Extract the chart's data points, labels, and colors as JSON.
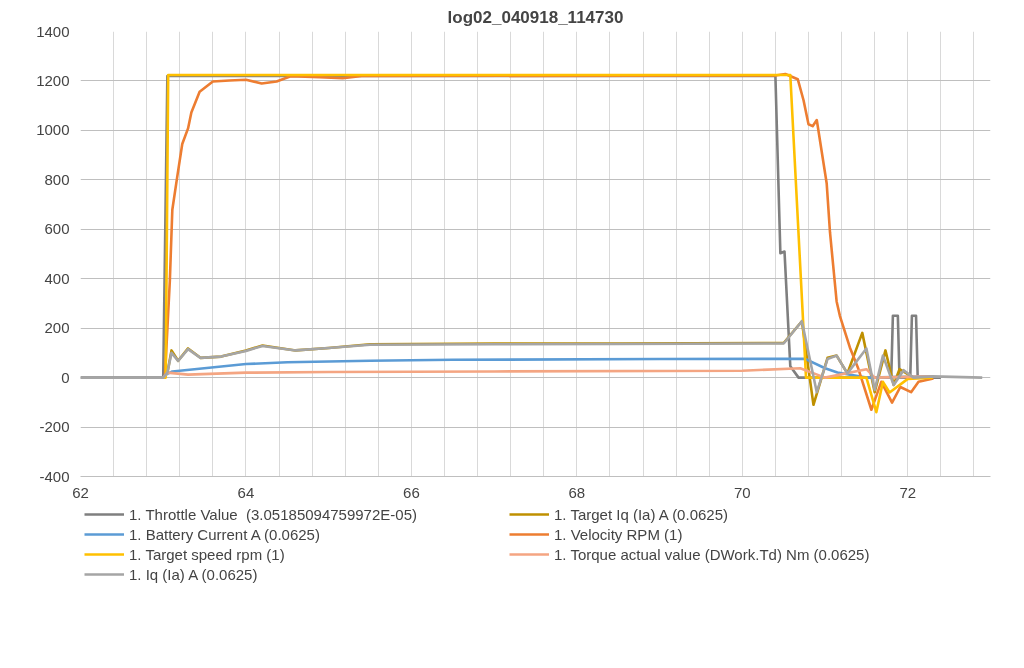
{
  "chart_data": {
    "type": "line",
    "title": "log02_040918_114730",
    "xlim": [
      62,
      73
    ],
    "ylim": [
      -400,
      1400
    ],
    "xticks": [
      62,
      {
        "value": 62.4,
        "label": null
      },
      {
        "value": 62.8,
        "label": null
      },
      {
        "value": 63.2,
        "label": null
      },
      {
        "value": 63.6,
        "label": null
      },
      64,
      {
        "value": 64.4,
        "label": null
      },
      {
        "value": 64.8,
        "label": null
      },
      {
        "value": 65.2,
        "label": null
      },
      {
        "value": 65.6,
        "label": null
      },
      66,
      {
        "value": 66.4,
        "label": null
      },
      {
        "value": 66.8,
        "label": null
      },
      {
        "value": 67.2,
        "label": null
      },
      {
        "value": 67.6,
        "label": null
      },
      68,
      {
        "value": 68.4,
        "label": null
      },
      {
        "value": 68.8,
        "label": null
      },
      {
        "value": 69.2,
        "label": null
      },
      {
        "value": 69.6,
        "label": null
      },
      70,
      {
        "value": 70.4,
        "label": null
      },
      {
        "value": 70.8,
        "label": null
      },
      {
        "value": 71.2,
        "label": null
      },
      {
        "value": 71.6,
        "label": null
      },
      72,
      {
        "value": 72.4,
        "label": null
      },
      {
        "value": 72.8,
        "label": null
      }
    ],
    "yticks": [
      -400,
      -200,
      0,
      200,
      400,
      600,
      800,
      1000,
      1200,
      1400
    ],
    "grid": true,
    "legend": "bottom",
    "line_style": "solid",
    "marker": "none",
    "series": [
      {
        "name": "1. Throttle Value  (3.05185094759972E-05)",
        "color": "#7f7f7f",
        "x": [
          62,
          63,
          63.05,
          70.4,
          70.46,
          70.51,
          70.58,
          70.68,
          71.8,
          71.82,
          71.88,
          71.9,
          72.03,
          72.05,
          72.1,
          72.12,
          72.3,
          72.4
        ],
        "values": [
          0,
          0,
          1220,
          1220,
          503,
          510,
          46,
          0,
          0,
          250,
          250,
          0,
          0,
          250,
          250,
          0,
          0,
          0
        ]
      },
      {
        "name": "1. Target Iq (Ia) A (0.0625)",
        "color": "#bf9000",
        "x": [
          63,
          63.05,
          63.1,
          63.18,
          63.3,
          63.45,
          63.7,
          64,
          64.2,
          64.6,
          65,
          65.5,
          67,
          68.5,
          70.5,
          70.72,
          70.86,
          71.03,
          71.14,
          71.27,
          71.45,
          71.6,
          71.73,
          71.83,
          71.9,
          72.07,
          72.3
        ],
        "values": [
          0,
          20,
          110,
          68,
          118,
          80,
          85,
          110,
          130,
          110,
          120,
          135,
          138,
          138,
          140,
          228,
          -110,
          80,
          89,
          17,
          181,
          -59,
          110,
          -30,
          34,
          0,
          5
        ]
      },
      {
        "name": "1. Battery Current A (0.0625)",
        "color": "#5b9bd5",
        "x": [
          63,
          63.05,
          63.11,
          64,
          64.5,
          65.5,
          66.5,
          69,
          70.76,
          71,
          71.15,
          71.5,
          72.3
        ],
        "values": [
          0,
          15,
          25,
          55,
          62,
          68,
          72,
          75,
          76,
          38,
          21,
          0,
          5
        ]
      },
      {
        "name": "1. Velocity RPM (1)",
        "color": "#ed7d31",
        "x": [
          63,
          63.02,
          63.08,
          63.11,
          63.17,
          63.23,
          63.3,
          63.34,
          63.44,
          63.6,
          63.8,
          64,
          64.19,
          64.37,
          64.54,
          64.89,
          65.17,
          65.4,
          70.4,
          70.52,
          70.67,
          70.74,
          70.8,
          70.85,
          70.9,
          71.02,
          71.06,
          71.14,
          71.18,
          71.3,
          71.4,
          71.56,
          71.68,
          71.81,
          71.91,
          72.04,
          72.13,
          72.31
        ],
        "values": [
          0,
          0,
          392,
          679,
          814,
          945,
          1008,
          1072,
          1156,
          1198,
          1202,
          1205,
          1190,
          1198,
          1219,
          1215,
          1211,
          1220,
          1222,
          1228,
          1207,
          1122,
          1025,
          1017,
          1042,
          785,
          587,
          308,
          249,
          122,
          38,
          -130,
          -17,
          -101,
          -38,
          -59,
          -17,
          -4
        ]
      },
      {
        "name": "1. Target speed rpm (1)",
        "color": "#ffc000",
        "x": [
          63,
          63.03,
          63.06,
          70.58,
          70.77,
          71,
          71.5,
          71.62,
          71.7,
          71.78,
          72,
          72.3
        ],
        "values": [
          0,
          0,
          1224,
          1224,
          0,
          0,
          0,
          -140,
          -17,
          -60,
          -5,
          0
        ]
      },
      {
        "name": "1. Torque actual value (DWork.Td) Nm (0.0625)",
        "color": "#f4a582",
        "x": [
          63,
          63.05,
          63.3,
          64,
          65,
          67,
          70,
          70.7,
          71,
          71.5,
          71.6,
          72.3
        ],
        "values": [
          0,
          20,
          12,
          20,
          23,
          25,
          28,
          38,
          0,
          34,
          0,
          5
        ]
      },
      {
        "name": "1. Iq (Ia) A (0.0625)",
        "color": "#a5a5a5",
        "x": [
          62,
          63,
          63.05,
          63.1,
          63.18,
          63.3,
          63.45,
          63.7,
          64,
          64.2,
          64.6,
          65,
          65.5,
          67,
          68.5,
          70.5,
          70.72,
          70.9,
          71.03,
          71.14,
          71.27,
          71.5,
          71.6,
          71.7,
          71.83,
          71.95,
          72.07,
          72.3,
          72.9
        ],
        "values": [
          0,
          0,
          20,
          100,
          68,
          115,
          80,
          85,
          108,
          128,
          110,
          120,
          133,
          135,
          136,
          138,
          228,
          -59,
          75,
          89,
          17,
          118,
          -50,
          89,
          -30,
          30,
          0,
          5,
          0
        ]
      }
    ]
  }
}
